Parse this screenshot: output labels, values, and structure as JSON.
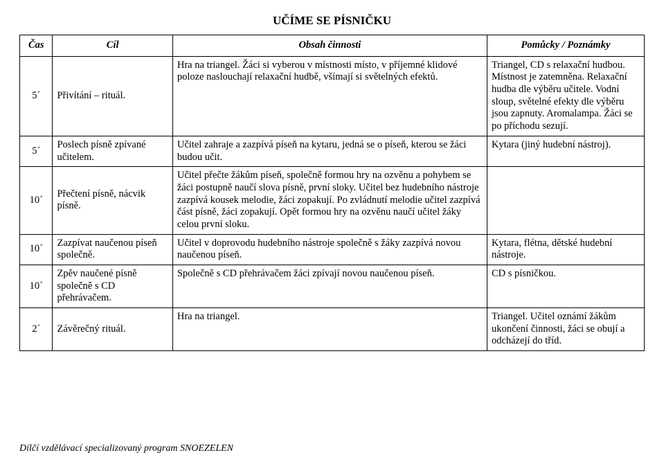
{
  "title": "UČÍME SE PÍSNIČKU",
  "headers": {
    "cas": "Čas",
    "cil": "Cíl",
    "obsah": "Obsah činnosti",
    "pom": "Pomůcky / Poznámky"
  },
  "rows": [
    {
      "cas": "5´",
      "cil": "Přivítání – rituál.",
      "obsah": "Hra na triangel.\nŽáci si vyberou v místnosti místo, v příjemné klidové poloze naslouchají relaxační hudbě, všímají si světelných efektů.",
      "pom": "Triangel, CD s relaxační hudbou.\nMístnost je zatemněna. Relaxační hudba dle výběru učitele. Vodní sloup, světelné efekty dle výběru jsou zapnuty. Aromalampa. Žáci se po příchodu sezují."
    },
    {
      "cas": "5´",
      "cil": "Poslech písně zpívané učitelem.",
      "obsah": "Učitel zahraje a zazpívá píseň na kytaru, jedná se o píseň, kterou se žáci budou učit.",
      "pom": "Kytara (jiný hudební nástroj)."
    },
    {
      "cas": "10´",
      "cil": "Přečtení písně, nácvik písně.",
      "obsah": "Učitel přečte žákům píseň, společně formou hry na ozvěnu a pohybem se žáci postupně naučí slova písně, první sloky. Učitel bez hudebního nástroje zazpívá kousek melodie, žáci zopakují. Po zvládnutí melodie učitel zazpívá část písně, žáci zopakují. Opět formou hry na ozvěnu naučí učitel žáky celou první sloku.",
      "pom": ""
    },
    {
      "cas": "10´",
      "cil": "Zazpívat naučenou píseň společně.",
      "obsah": "Učitel v doprovodu hudebního nástroje společně s žáky zazpívá novou naučenou píseň.",
      "pom": "Kytara, flétna, dětské hudební nástroje."
    },
    {
      "cas": "10´",
      "cil": "Zpěv naučené písně společně s CD přehrávačem.",
      "obsah": "Společně s CD přehrávačem žáci zpívají novou naučenou píseň.",
      "pom": "CD s písničkou."
    },
    {
      "cas": "2´",
      "cil": "Závěrečný rituál.",
      "obsah": "Hra na triangel.",
      "pom": "Triangel.\nUčitel oznámí žákům ukončení činnosti, žáci se obují a odcházejí do tříd."
    }
  ],
  "footer": "Dílčí vzdělávací specializovaný program SNOEZELEN"
}
